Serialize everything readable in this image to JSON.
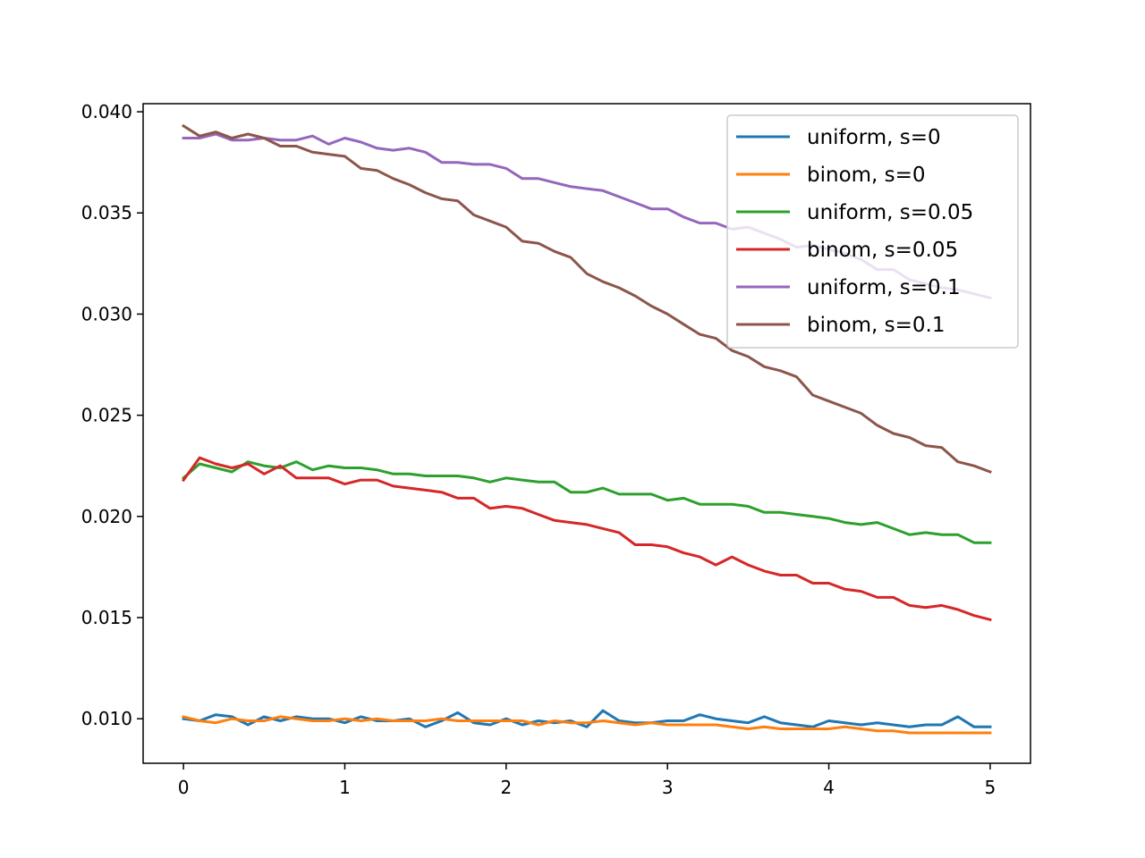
{
  "chart_data": {
    "type": "line",
    "title": "",
    "xlabel": "",
    "ylabel": "",
    "xlim": [
      -0.25,
      5.25
    ],
    "ylim": [
      0.0078,
      0.0404
    ],
    "grid": false,
    "legend_position": "top-right",
    "x_ticks": [
      "0",
      "1",
      "2",
      "3",
      "4",
      "5"
    ],
    "y_ticks": [
      "0.010",
      "0.015",
      "0.020",
      "0.025",
      "0.030",
      "0.035",
      "0.040"
    ],
    "x": [
      0,
      0.1,
      0.2,
      0.3,
      0.4,
      0.5,
      0.6,
      0.7,
      0.8,
      0.9,
      1.0,
      1.1,
      1.2,
      1.3,
      1.4,
      1.5,
      1.6,
      1.7,
      1.8,
      1.9,
      2.0,
      2.1,
      2.2,
      2.3,
      2.4,
      2.5,
      2.6,
      2.7,
      2.8,
      2.9,
      3.0,
      3.1,
      3.2,
      3.3,
      3.4,
      3.5,
      3.6,
      3.7,
      3.8,
      3.9,
      4.0,
      4.1,
      4.2,
      4.3,
      4.4,
      4.5,
      4.6,
      4.7,
      4.8,
      4.9,
      5.0
    ],
    "series": [
      {
        "name": "uniform, s=0",
        "color": "#1f77b4",
        "values": [
          0.01,
          0.0099,
          0.0102,
          0.0101,
          0.0097,
          0.0101,
          0.0099,
          0.0101,
          0.01,
          0.01,
          0.0098,
          0.0101,
          0.0099,
          0.0099,
          0.01,
          0.0096,
          0.0099,
          0.0103,
          0.0098,
          0.0097,
          0.01,
          0.0097,
          0.0099,
          0.0098,
          0.0099,
          0.0096,
          0.0104,
          0.0099,
          0.0098,
          0.0098,
          0.0099,
          0.0099,
          0.0102,
          0.01,
          0.0099,
          0.0098,
          0.0101,
          0.0098,
          0.0097,
          0.0096,
          0.0099,
          0.0098,
          0.0097,
          0.0098,
          0.0097,
          0.0096,
          0.0097,
          0.0097,
          0.0101,
          0.0096,
          0.0096
        ]
      },
      {
        "name": "binom, s=0",
        "color": "#ff7f0e",
        "values": [
          0.0101,
          0.0099,
          0.0098,
          0.01,
          0.0099,
          0.0099,
          0.0101,
          0.01,
          0.0099,
          0.0099,
          0.01,
          0.0099,
          0.01,
          0.0099,
          0.0099,
          0.0099,
          0.01,
          0.0099,
          0.0099,
          0.0099,
          0.0099,
          0.0099,
          0.0097,
          0.0099,
          0.0098,
          0.0098,
          0.0099,
          0.0098,
          0.0097,
          0.0098,
          0.0097,
          0.0097,
          0.0097,
          0.0097,
          0.0096,
          0.0095,
          0.0096,
          0.0095,
          0.0095,
          0.0095,
          0.0095,
          0.0096,
          0.0095,
          0.0094,
          0.0094,
          0.0093,
          0.0093,
          0.0093,
          0.0093,
          0.0093,
          0.0093
        ]
      },
      {
        "name": "uniform, s=0.05",
        "color": "#2ca02c",
        "values": [
          0.0219,
          0.0226,
          0.0224,
          0.0222,
          0.0227,
          0.0225,
          0.0224,
          0.0227,
          0.0223,
          0.0225,
          0.0224,
          0.0224,
          0.0223,
          0.0221,
          0.0221,
          0.022,
          0.022,
          0.022,
          0.0219,
          0.0217,
          0.0219,
          0.0218,
          0.0217,
          0.0217,
          0.0212,
          0.0212,
          0.0214,
          0.0211,
          0.0211,
          0.0211,
          0.0208,
          0.0209,
          0.0206,
          0.0206,
          0.0206,
          0.0205,
          0.0202,
          0.0202,
          0.0201,
          0.02,
          0.0199,
          0.0197,
          0.0196,
          0.0197,
          0.0194,
          0.0191,
          0.0192,
          0.0191,
          0.0191,
          0.0187,
          0.0187
        ]
      },
      {
        "name": "binom, s=0.05",
        "color": "#d62728",
        "values": [
          0.0218,
          0.0229,
          0.0226,
          0.0224,
          0.0226,
          0.0221,
          0.0225,
          0.0219,
          0.0219,
          0.0219,
          0.0216,
          0.0218,
          0.0218,
          0.0215,
          0.0214,
          0.0213,
          0.0212,
          0.0209,
          0.0209,
          0.0204,
          0.0205,
          0.0204,
          0.0201,
          0.0198,
          0.0197,
          0.0196,
          0.0194,
          0.0192,
          0.0186,
          0.0186,
          0.0185,
          0.0182,
          0.018,
          0.0176,
          0.018,
          0.0176,
          0.0173,
          0.0171,
          0.0171,
          0.0167,
          0.0167,
          0.0164,
          0.0163,
          0.016,
          0.016,
          0.0156,
          0.0155,
          0.0156,
          0.0154,
          0.0151,
          0.0149
        ]
      },
      {
        "name": "uniform, s=0.1",
        "color": "#9467bd",
        "values": [
          0.0387,
          0.0387,
          0.0389,
          0.0386,
          0.0386,
          0.0387,
          0.0386,
          0.0386,
          0.0388,
          0.0384,
          0.0387,
          0.0385,
          0.0382,
          0.0381,
          0.0382,
          0.038,
          0.0375,
          0.0375,
          0.0374,
          0.0374,
          0.0372,
          0.0367,
          0.0367,
          0.0365,
          0.0363,
          0.0362,
          0.0361,
          0.0358,
          0.0355,
          0.0352,
          0.0352,
          0.0348,
          0.0345,
          0.0345,
          0.0342,
          0.0343,
          0.034,
          0.0337,
          0.0333,
          0.0334,
          0.0332,
          0.033,
          0.0327,
          0.0322,
          0.0322,
          0.0317,
          0.0315,
          0.0313,
          0.0312,
          0.031,
          0.0308
        ]
      },
      {
        "name": "binom, s=0.1",
        "color": "#8c564b",
        "values": [
          0.0393,
          0.0388,
          0.039,
          0.0387,
          0.0389,
          0.0387,
          0.0383,
          0.0383,
          0.038,
          0.0379,
          0.0378,
          0.0372,
          0.0371,
          0.0367,
          0.0364,
          0.036,
          0.0357,
          0.0356,
          0.0349,
          0.0346,
          0.0343,
          0.0336,
          0.0335,
          0.0331,
          0.0328,
          0.032,
          0.0316,
          0.0313,
          0.0309,
          0.0304,
          0.03,
          0.0295,
          0.029,
          0.0288,
          0.0282,
          0.0279,
          0.0274,
          0.0272,
          0.0269,
          0.026,
          0.0257,
          0.0254,
          0.0251,
          0.0245,
          0.0241,
          0.0239,
          0.0235,
          0.0234,
          0.0227,
          0.0225,
          0.0222
        ]
      }
    ]
  }
}
